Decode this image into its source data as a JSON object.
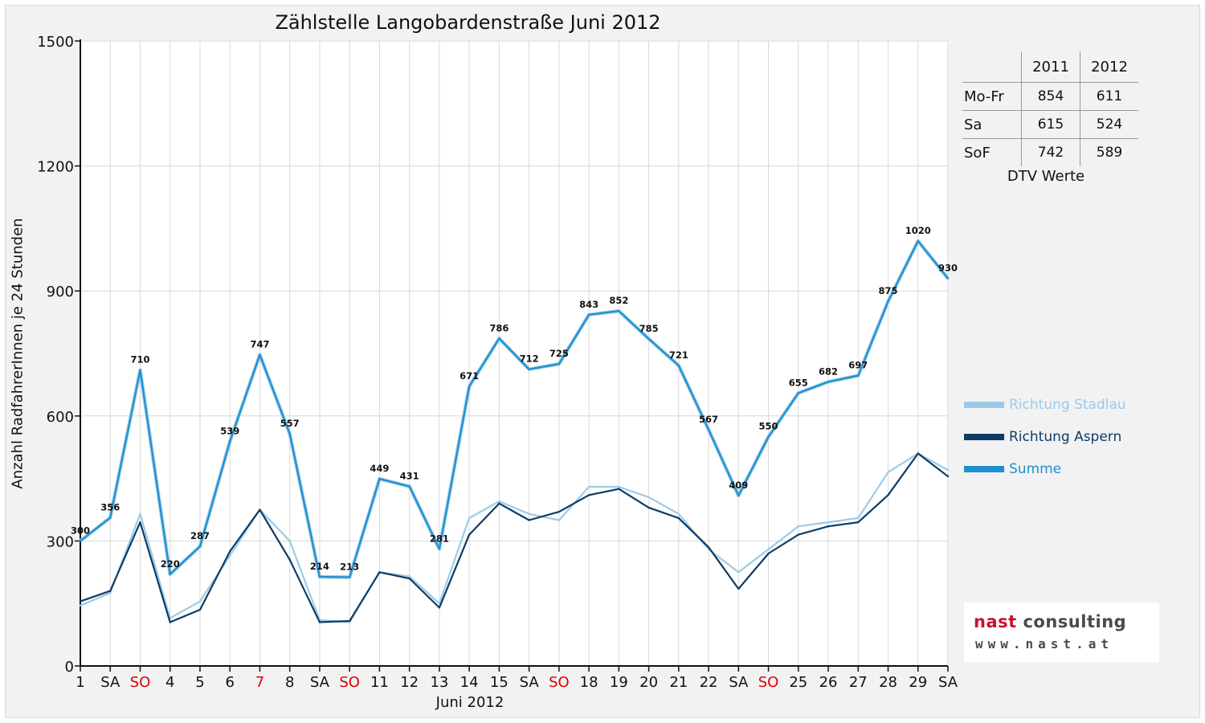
{
  "chart_data": {
    "type": "line",
    "title": "Zählstelle Langobardenstraße Juni 2012",
    "xlabel": "Juni 2012",
    "ylabel": "Anzahl RadfahrerInnen je 24 Stunden",
    "ylim": [
      0,
      1500
    ],
    "yticks": [
      0,
      300,
      600,
      900,
      1200,
      1500
    ],
    "grid": true,
    "legend_position": "right",
    "categories": [
      "1",
      "SA",
      "SO",
      "4",
      "5",
      "6",
      "7",
      "8",
      "SA",
      "SO",
      "11",
      "12",
      "13",
      "14",
      "15",
      "SA",
      "SO",
      "18",
      "19",
      "20",
      "21",
      "22",
      "SA",
      "SO",
      "25",
      "26",
      "27",
      "28",
      "29",
      "SA"
    ],
    "category_colors": [
      "#111111",
      "#111111",
      "#e00000",
      "#111111",
      "#111111",
      "#111111",
      "#e00000",
      "#111111",
      "#111111",
      "#e00000",
      "#111111",
      "#111111",
      "#111111",
      "#111111",
      "#111111",
      "#111111",
      "#e00000",
      "#111111",
      "#111111",
      "#111111",
      "#111111",
      "#111111",
      "#111111",
      "#e00000",
      "#111111",
      "#111111",
      "#111111",
      "#111111",
      "#111111",
      "#111111"
    ],
    "series": [
      {
        "name": "Richtung Stadlau",
        "color": "#9ccbe8",
        "values": [
          145,
          175,
          365,
          115,
          155,
          265,
          375,
          300,
          110,
          105,
          225,
          215,
          150,
          355,
          395,
          365,
          350,
          430,
          430,
          405,
          365,
          280,
          225,
          280,
          335,
          345,
          355,
          465,
          510,
          470
        ]
      },
      {
        "name": "Richtung Aspern",
        "color": "#0d3c66",
        "values": [
          155,
          180,
          345,
          105,
          135,
          275,
          375,
          255,
          105,
          108,
          225,
          210,
          140,
          315,
          390,
          350,
          370,
          410,
          425,
          380,
          355,
          285,
          185,
          270,
          315,
          335,
          345,
          410,
          510,
          455
        ]
      },
      {
        "name": "Summe",
        "color": "#1e90d2",
        "values": [
          300,
          356,
          710,
          220,
          287,
          539,
          747,
          557,
          214,
          213,
          449,
          431,
          281,
          671,
          786,
          712,
          725,
          843,
          852,
          785,
          721,
          567,
          409,
          550,
          655,
          682,
          697,
          875,
          1020,
          930
        ],
        "labels": [
          "300",
          "356",
          "710",
          "220",
          "287",
          "539",
          "747",
          "557",
          "214",
          "213",
          "449",
          "431",
          "281",
          "671",
          "786",
          "712",
          "725",
          "843",
          "852",
          "785",
          "721",
          "567",
          "409",
          "550",
          "655",
          "682",
          "697",
          "875",
          "1020",
          "930"
        ]
      }
    ]
  },
  "dtv_table": {
    "headers": [
      "2011",
      "2012"
    ],
    "rows": [
      {
        "label": "Mo-Fr",
        "v2011": "854",
        "v2012": "611"
      },
      {
        "label": "Sa",
        "v2011": "615",
        "v2012": "524"
      },
      {
        "label": "SoF",
        "v2011": "742",
        "v2012": "589"
      }
    ],
    "caption": "DTV Werte"
  },
  "logo": {
    "name_accent": "nast",
    "name_rest": " consulting",
    "url": "www.nast.at"
  }
}
